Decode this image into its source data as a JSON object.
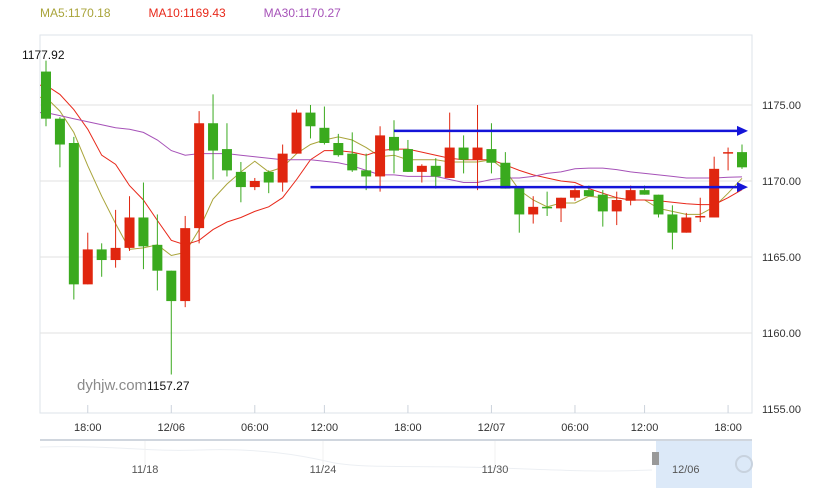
{
  "legend": {
    "ma5": {
      "label": "MA5:1170.18",
      "color": "#a9a43a"
    },
    "ma10": {
      "label": "MA10:1169.43",
      "color": "#e8281a"
    },
    "ma30": {
      "label": "MA30:1170.27",
      "color": "#a652b8"
    }
  },
  "watermark": "dyhjw.com",
  "chart_data": {
    "type": "candlestick",
    "up_color": "#e0260f",
    "down_color": "#3aaa1e",
    "grid": true,
    "ylim": [
      1155,
      1177.9
    ],
    "yticks": [
      "1155.00",
      "1160.00",
      "1165.00",
      "1170.00",
      "1175.00"
    ],
    "ytick_values": [
      1155,
      1160,
      1165,
      1170,
      1175
    ],
    "xticks": [
      {
        "at": 3,
        "label": "18:00"
      },
      {
        "at": 9,
        "label": "12/06"
      },
      {
        "at": 15,
        "label": "06:00"
      },
      {
        "at": 20,
        "label": "12:00"
      },
      {
        "at": 26,
        "label": "18:00"
      },
      {
        "at": 32,
        "label": "12/07"
      },
      {
        "at": 38,
        "label": "06:00"
      },
      {
        "at": 43,
        "label": "12:00"
      },
      {
        "at": 49,
        "label": "18:00"
      }
    ],
    "max_label": {
      "at": 0,
      "value": 1177.92,
      "text": "1177.92"
    },
    "min_label": {
      "at": 9,
      "value": 1157.27,
      "text": "1157.27"
    },
    "candles": [
      [
        1177.2,
        1174.1,
        1177.92,
        1173.6
      ],
      [
        1174.1,
        1172.4,
        1174.2,
        1170.9
      ],
      [
        1172.5,
        1163.2,
        1172.9,
        1162.2
      ],
      [
        1163.2,
        1165.5,
        1166.6,
        1163.2
      ],
      [
        1165.5,
        1164.8,
        1165.9,
        1163.7
      ],
      [
        1164.8,
        1165.6,
        1168.1,
        1164.3
      ],
      [
        1165.6,
        1167.6,
        1169.0,
        1165.4
      ],
      [
        1167.6,
        1165.7,
        1169.9,
        1164.2
      ],
      [
        1165.8,
        1164.1,
        1167.8,
        1162.8
      ],
      [
        1164.1,
        1162.1,
        1164.1,
        1157.27
      ],
      [
        1162.1,
        1166.9,
        1167.7,
        1161.7
      ],
      [
        1166.9,
        1173.8,
        1174.6,
        1165.9
      ],
      [
        1173.8,
        1172.0,
        1175.7,
        1170.1
      ],
      [
        1172.1,
        1170.7,
        1173.8,
        1170.3
      ],
      [
        1170.6,
        1169.6,
        1171.25,
        1168.6
      ],
      [
        1169.6,
        1170.0,
        1170.2,
        1169.4
      ],
      [
        1170.6,
        1169.9,
        1170.7,
        1169.2
      ],
      [
        1169.9,
        1171.8,
        1172.4,
        1169.3
      ],
      [
        1171.8,
        1174.5,
        1174.7,
        1171.8
      ],
      [
        1174.5,
        1173.6,
        1175.0,
        1172.8
      ],
      [
        1173.5,
        1172.5,
        1174.9,
        1172.4
      ],
      [
        1172.5,
        1171.7,
        1173.1,
        1171.6
      ],
      [
        1171.8,
        1170.7,
        1173.2,
        1170.6
      ],
      [
        1170.7,
        1170.3,
        1171.8,
        1169.4
      ],
      [
        1170.3,
        1173.0,
        1173.6,
        1169.3
      ],
      [
        1172.9,
        1172.0,
        1174.0,
        1170.5
      ],
      [
        1172.1,
        1170.6,
        1172.7,
        1170.6
      ],
      [
        1170.6,
        1171.0,
        1171.1,
        1169.9
      ],
      [
        1171.0,
        1170.3,
        1171.5,
        1169.5
      ],
      [
        1170.2,
        1172.2,
        1174.5,
        1170.2
      ],
      [
        1172.2,
        1171.4,
        1173.0,
        1170.5
      ],
      [
        1171.4,
        1172.2,
        1175.0,
        1169.4
      ],
      [
        1172.1,
        1171.2,
        1173.8,
        1170.5
      ],
      [
        1171.2,
        1169.5,
        1171.9,
        1169.5
      ],
      [
        1169.6,
        1167.8,
        1169.6,
        1166.6
      ],
      [
        1167.8,
        1168.3,
        1169.0,
        1167.2
      ],
      [
        1168.3,
        1168.2,
        1169.3,
        1167.7
      ],
      [
        1168.2,
        1168.9,
        1168.9,
        1167.3
      ],
      [
        1168.9,
        1169.4,
        1169.7,
        1168.7
      ],
      [
        1169.4,
        1169.0,
        1169.7,
        1169.0
      ],
      [
        1169.1,
        1168.0,
        1169.4,
        1167.0
      ],
      [
        1168.0,
        1168.75,
        1169.3,
        1167.1
      ],
      [
        1168.7,
        1169.4,
        1169.7,
        1168.4
      ],
      [
        1169.4,
        1169.1,
        1169.7,
        1169.1
      ],
      [
        1169.1,
        1167.8,
        1169.1,
        1167.6
      ],
      [
        1167.8,
        1166.6,
        1168.4,
        1165.5
      ],
      [
        1166.6,
        1167.6,
        1167.9,
        1166.6
      ],
      [
        1167.6,
        1167.7,
        1168.9,
        1167.3
      ],
      [
        1167.6,
        1170.8,
        1171.6,
        1167.6
      ],
      [
        1171.85,
        1171.9,
        1172.2,
        1170.7
      ],
      [
        1171.9,
        1170.9,
        1172.4,
        1170.8
      ]
    ],
    "series": [
      {
        "name": "MA5",
        "color": "#a9a43a",
        "values": [
          1175.5,
          1174.6,
          1173.2,
          1171.0,
          1169.0,
          1167.2,
          1165.5,
          1165.6,
          1165.8,
          1165.1,
          1165.3,
          1166.8,
          1168.8,
          1169.8,
          1170.6,
          1171.3,
          1170.6,
          1170.9,
          1171.8,
          1172.4,
          1172.7,
          1172.9,
          1172.7,
          1172.2,
          1171.6,
          1171.7,
          1171.4,
          1171.4,
          1171.4,
          1171.25,
          1171.25,
          1171.25,
          1171.4,
          1170.7,
          1169.4,
          1168.75,
          1168.3,
          1168.55,
          1168.55,
          1169.0,
          1168.9,
          1168.9,
          1168.75,
          1168.75,
          1168.2,
          1168.0,
          1167.8,
          1167.8,
          1168.3,
          1169.2,
          1170.18
        ]
      },
      {
        "name": "MA10",
        "color": "#e8281a",
        "values": [
          1176.3,
          1175.7,
          1174.7,
          1173.4,
          1171.7,
          1171.1,
          1169.7,
          1168.75,
          1167.4,
          1166.1,
          1165.8,
          1166.1,
          1166.8,
          1167.3,
          1167.6,
          1168.0,
          1168.3,
          1168.9,
          1170.1,
          1171.4,
          1172.0,
          1172.0,
          1171.9,
          1171.7,
          1172.0,
          1172.1,
          1172.1,
          1171.9,
          1171.7,
          1171.5,
          1171.4,
          1171.4,
          1171.4,
          1171.05,
          1170.7,
          1170.4,
          1170.2,
          1170.0,
          1169.9,
          1169.5,
          1169.2,
          1168.9,
          1168.75,
          1168.75,
          1168.7,
          1168.6,
          1168.5,
          1168.45,
          1168.45,
          1168.9,
          1169.43
        ]
      },
      {
        "name": "MA30",
        "color": "#a652b8",
        "values": [
          1174.5,
          1174.3,
          1174.1,
          1173.9,
          1173.7,
          1173.5,
          1173.4,
          1173.2,
          1172.7,
          1172.0,
          1171.7,
          1171.8,
          1171.8,
          1171.8,
          1171.7,
          1171.6,
          1171.5,
          1171.4,
          1171.4,
          1171.4,
          1171.3,
          1171.2,
          1171.0,
          1170.7,
          1170.4,
          1170.4,
          1170.3,
          1170.3,
          1170.3,
          1170.1,
          1169.9,
          1169.9,
          1170.1,
          1170.2,
          1170.2,
          1170.3,
          1170.5,
          1170.6,
          1170.8,
          1170.85,
          1170.85,
          1170.75,
          1170.6,
          1170.5,
          1170.4,
          1170.3,
          1170.2,
          1170.2,
          1170.2,
          1170.25,
          1170.27
        ]
      }
    ],
    "annotations": [
      {
        "type": "arrow-line",
        "from": 25,
        "value": 1173.3,
        "color": "#1414d8"
      },
      {
        "type": "arrow-line",
        "from": 19,
        "value": 1169.6,
        "color": "#1414d8"
      }
    ],
    "navigator": {
      "labels": [
        "11/18",
        "11/24",
        "11/30",
        "12/06"
      ],
      "selection_color": "#dce9f8"
    }
  }
}
